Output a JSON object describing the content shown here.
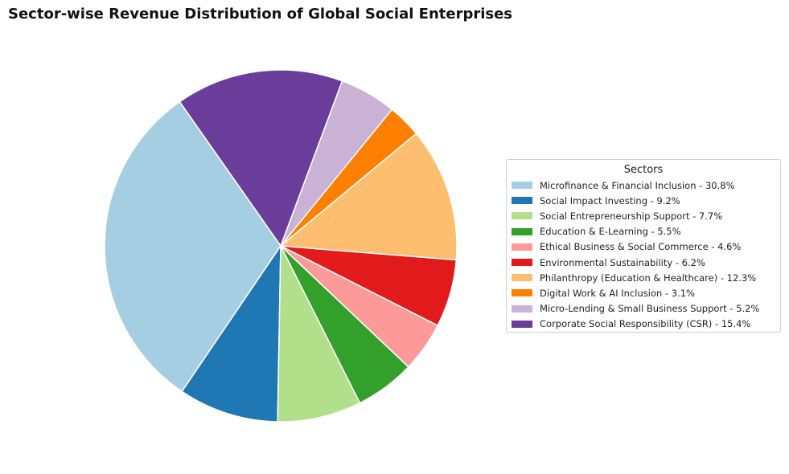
{
  "chart_data": {
    "type": "pie",
    "title": "Sector-wise Revenue Distribution of Global Social Enterprises",
    "legend_title": "Sectors",
    "legend_position": "right",
    "start_angle_deg": 125,
    "direction": "counterclockwise",
    "slices": [
      {
        "label": "Microfinance & Financial Inclusion - 30.8%",
        "value": 30.8,
        "color": "#a6cee3"
      },
      {
        "label": "Social Impact Investing - 9.2%",
        "value": 9.2,
        "color": "#1f78b4"
      },
      {
        "label": "Social Entrepreneurship Support - 7.7%",
        "value": 7.7,
        "color": "#b2df8a"
      },
      {
        "label": "Education & E-Learning - 5.5%",
        "value": 5.5,
        "color": "#33a02c"
      },
      {
        "label": "Ethical Business & Social Commerce - 4.6%",
        "value": 4.6,
        "color": "#fb9a99"
      },
      {
        "label": "Environmental Sustainability - 6.2%",
        "value": 6.2,
        "color": "#e31a1c"
      },
      {
        "label": "Philanthropy (Education & Healthcare) - 12.3%",
        "value": 12.3,
        "color": "#fdbf6f"
      },
      {
        "label": "Digital Work & AI Inclusion - 3.1%",
        "value": 3.1,
        "color": "#ff7f00"
      },
      {
        "label": "Micro-Lending & Small Business Support - 5.2%",
        "value": 5.2,
        "color": "#cab2d6"
      },
      {
        "label": "Corporate Social Responsibility (CSR) - 15.4%",
        "value": 15.4,
        "color": "#6a3d9a"
      }
    ]
  }
}
